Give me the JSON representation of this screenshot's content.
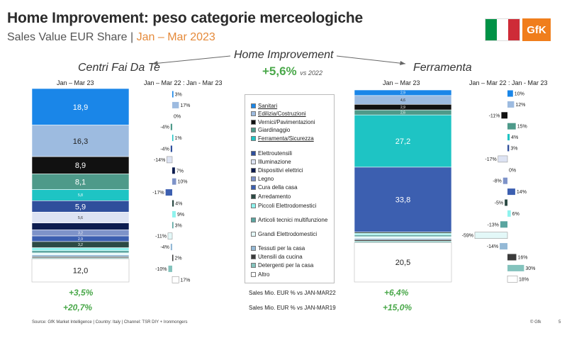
{
  "title": "Home Improvement: peso categorie merceologiche",
  "subtitle_main": "Sales Value EUR Share | ",
  "subtitle_period": "Jan – Mar 2023",
  "logo_text": "GfK",
  "flag_colors": [
    "#009246",
    "#ffffff",
    "#ce2b37"
  ],
  "center_label": "Home Improvement",
  "center_growth": "+5,6%",
  "center_growth_note": "vs 2022",
  "left_title": "Centri Fai Da Te",
  "right_title": "Ferramenta",
  "period_label": "Jan – Mar 23",
  "change_label": "Jan – Mar 22 : Jan - Mar 23",
  "comparisons": [
    {
      "label": "Sales Mio. EUR % vs JAN-MAR22",
      "left": "+3,5%",
      "right": "+6,4%"
    },
    {
      "label": "Sales Mio. EUR % vs JAN-MAR19",
      "left": "+20,7%",
      "right": "+15,0%"
    }
  ],
  "source": "Source: GfK Market Intelligence | Country: Italy | Channel: TSR DIY + Ironmongers",
  "copyright": "© Gfk",
  "page_number": "5",
  "chart_data": {
    "type": "bar",
    "categories": [
      "Sanitari",
      "Edilizia/Costruzioni",
      "Vernici/Pavimentazioni",
      "Giardinaggio",
      "Ferramenta/Sicurezza",
      "Elettroutensili",
      "Illuminazione",
      "Dispositivi elettrici",
      "Legno",
      "Cura della casa",
      "Arredamento",
      "Piccoli Elettrodomestici",
      "Articoli tecnici multifunzione",
      "Grandi Elettrodomestici",
      "Tessuti per la casa",
      "Utensili da cucina",
      "Detergenti per la casa",
      "Altro"
    ],
    "underlined_categories": [
      "Sanitari",
      "Edilizia/Costruzioni",
      "Ferramenta/Sicurezza"
    ],
    "colors": [
      "#1a86e8",
      "#9dbbe0",
      "#111111",
      "#4e9a8a",
      "#1ec4c4",
      "#2f4f9c",
      "#dde3f3",
      "#0c1c4f",
      "#7e93c9",
      "#3c5fb0",
      "#2b4a44",
      "#8ff3ee",
      "#5aa5a0",
      "#e3f8f8",
      "#94b9d6",
      "#3b3b3b",
      "#84c3bd",
      "#ffffff"
    ],
    "series": [
      {
        "name": "Centri Fai Da Te",
        "share": [
          18.9,
          16.3,
          8.9,
          8.1,
          5.8,
          5.9,
          5.6,
          3.5,
          3.2,
          2.9,
          3.2,
          1.5,
          1.2,
          1.0,
          0.9,
          0.6,
          0.5,
          12.0
        ],
        "share_labels": [
          "18,9",
          "16,3",
          "8,9",
          "8,1",
          "5,8",
          "5,9",
          "5,6",
          "",
          "3,2",
          "2,9",
          "3,2",
          "",
          "",
          "",
          "",
          "",
          "",
          "12,0"
        ],
        "change_pct": [
          3,
          17,
          0,
          -4,
          1,
          -4,
          -14,
          7,
          10,
          -17,
          4,
          9,
          3,
          -11,
          -4,
          2,
          -10,
          17
        ]
      },
      {
        "name": "Ferramenta",
        "share": [
          2.9,
          4.6,
          2.9,
          2.6,
          27.2,
          0,
          0,
          0,
          0,
          33.8,
          0.7,
          0.8,
          0.9,
          0.9,
          0.7,
          0.7,
          0.8,
          20.5
        ],
        "share_labels": [
          "2,9",
          "4,6",
          "2,9",
          "2,6",
          "27,2",
          "",
          "",
          "",
          "",
          "33,8",
          "",
          "",
          "",
          "",
          "",
          "",
          "",
          "20,5"
        ],
        "change_pct": [
          10,
          12,
          -11,
          15,
          4,
          3,
          -17,
          0,
          -8,
          14,
          -5,
          6,
          -13,
          -59,
          -14,
          16,
          30,
          18
        ]
      }
    ]
  }
}
